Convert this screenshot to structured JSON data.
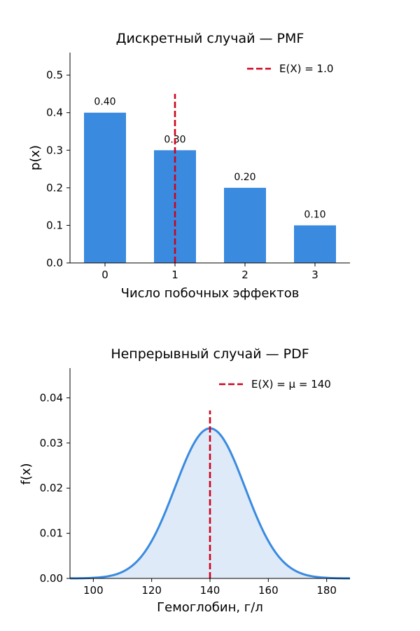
{
  "chart_data": [
    {
      "type": "bar",
      "title": "Дискретный случай — PMF",
      "xlabel": "Число побочных эффектов",
      "ylabel": "p(x)",
      "categories": [
        "0",
        "1",
        "2",
        "3"
      ],
      "values": [
        0.4,
        0.3,
        0.2,
        0.1
      ],
      "data_labels": [
        "0.40",
        "0.30",
        "0.20",
        "0.10"
      ],
      "ylim": [
        0,
        0.56
      ],
      "yticks": [
        0.0,
        0.1,
        0.2,
        0.3,
        0.4,
        0.5
      ],
      "ytick_labels": [
        "0.0",
        "0.1",
        "0.2",
        "0.3",
        "0.4",
        "0.5"
      ],
      "bar_color": "#3a8ae0",
      "mean_line": {
        "x": 1.0,
        "label": "E(X) = 1.0",
        "color": "#d0021b"
      },
      "legend_position": "top-right",
      "grid": false
    },
    {
      "type": "area",
      "title": "Непрерывный случай — PDF",
      "xlabel": "Гемоглобин, г/л",
      "ylabel": "f(x)",
      "distribution": {
        "family": "normal",
        "mu": 140,
        "sigma": 12
      },
      "xlim": [
        92,
        188
      ],
      "ylim": [
        0,
        0.0466
      ],
      "xticks": [
        100,
        120,
        140,
        160,
        180
      ],
      "xtick_labels": [
        "100",
        "120",
        "140",
        "160",
        "180"
      ],
      "yticks": [
        0.0,
        0.01,
        0.02,
        0.03,
        0.04
      ],
      "ytick_labels": [
        "0.00",
        "0.01",
        "0.02",
        "0.03",
        "0.04"
      ],
      "line_color": "#3a8ae0",
      "fill_color": "#deeaf7",
      "mean_line": {
        "x": 140,
        "label": "E(X) = μ = 140",
        "color": "#d0021b"
      },
      "legend_position": "top-right",
      "grid": false
    }
  ]
}
